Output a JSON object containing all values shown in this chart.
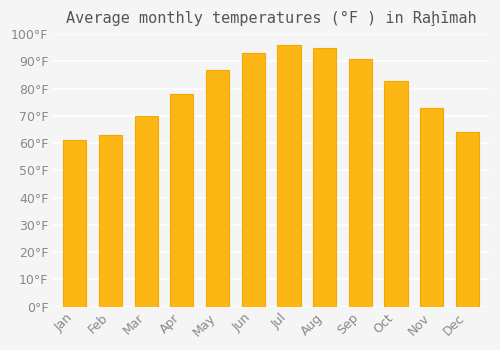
{
  "title": "Average monthly temperatures (°F ) in Raḩīmah",
  "months": [
    "Jan",
    "Feb",
    "Mar",
    "Apr",
    "May",
    "Jun",
    "Jul",
    "Aug",
    "Sep",
    "Oct",
    "Nov",
    "Dec"
  ],
  "values": [
    61,
    63,
    70,
    78,
    87,
    93,
    96,
    95,
    91,
    83,
    73,
    64
  ],
  "bar_color_main": "#FDB714",
  "bar_color_edge": "#F5A800",
  "ylim": [
    0,
    100
  ],
  "yticks": [
    0,
    10,
    20,
    30,
    40,
    50,
    60,
    70,
    80,
    90,
    100
  ],
  "background_color": "#f5f5f5",
  "grid_color": "#ffffff",
  "title_fontsize": 11,
  "tick_fontsize": 9
}
